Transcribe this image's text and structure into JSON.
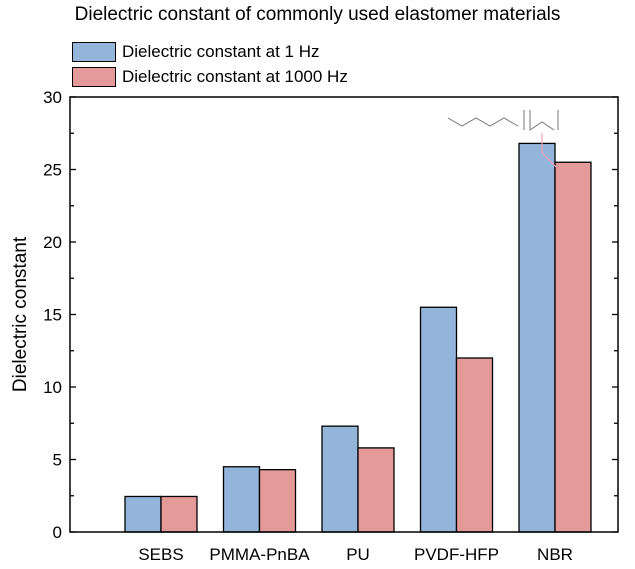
{
  "chart_data": {
    "type": "bar",
    "title": "Dielectric constant of commonly used elastomer materials",
    "xlabel": "",
    "ylabel": "Dielectric constant",
    "ylim": [
      0,
      30
    ],
    "yticks": [
      0,
      5,
      10,
      15,
      20,
      25,
      30
    ],
    "categories": [
      "SEBS",
      "PMMA-PnBA",
      "PU",
      "PVDF-HFP",
      "NBR"
    ],
    "series": [
      {
        "name": "Dielectric constant at 1 Hz",
        "color": "#93b5d9",
        "values": [
          2.45,
          4.5,
          7.3,
          15.5,
          26.8
        ]
      },
      {
        "name": "Dielectric constant at 1000 Hz",
        "color": "#e49a99",
        "values": [
          2.45,
          4.3,
          5.8,
          12.0,
          25.5
        ]
      }
    ],
    "legend": "top-left",
    "grid": false
  }
}
